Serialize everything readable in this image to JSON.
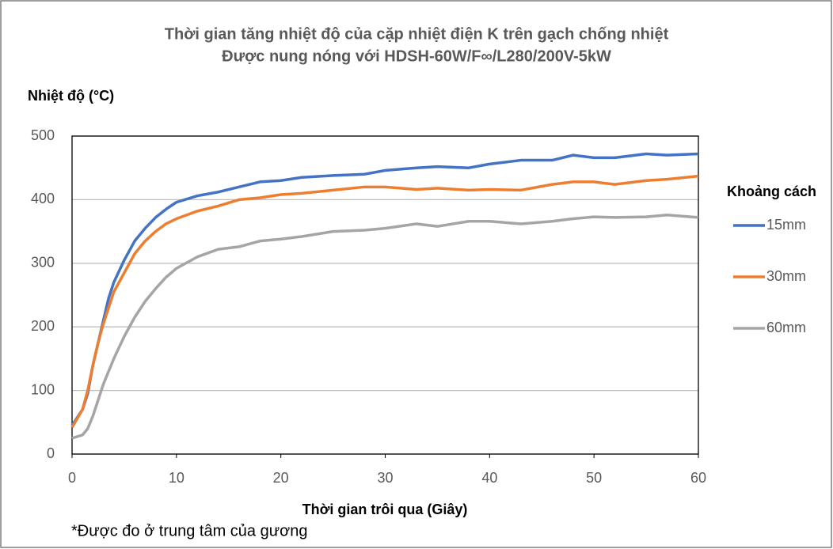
{
  "chart_data": {
    "type": "line",
    "title": "Thời gian tăng nhiệt độ của cặp nhiệt điện K trên gạch chống nhiệt",
    "subtitle": "Được nung nóng với HDSH-60W/F∞/L280/200V-5kW",
    "y_label": "Nhiệt độ (°C)",
    "x_label": "Thời gian trôi qua (Giây)",
    "legend_title": "Khoảng cách",
    "legend_position": "right",
    "annotation": "*Được đo ở trung tâm của gương",
    "grid": true,
    "x": [
      0,
      1,
      1.5,
      2,
      2.5,
      3,
      3.5,
      4,
      5,
      6,
      7,
      8,
      9,
      10,
      12,
      14,
      16,
      18,
      20,
      22,
      25,
      28,
      30,
      33,
      35,
      38,
      40,
      43,
      46,
      48,
      50,
      52,
      55,
      57,
      60
    ],
    "series": [
      {
        "name": "15mm",
        "color": "#4472c4",
        "values": [
          45,
          70,
          95,
          140,
          175,
          210,
          245,
          270,
          305,
          335,
          355,
          372,
          385,
          396,
          406,
          412,
          420,
          428,
          430,
          435,
          438,
          440,
          446,
          450,
          452,
          450,
          456,
          462,
          462,
          470,
          466,
          466,
          472,
          470,
          472
        ]
      },
      {
        "name": "30mm",
        "color": "#ed7d31",
        "values": [
          42,
          70,
          100,
          140,
          175,
          205,
          230,
          255,
          285,
          315,
          335,
          350,
          362,
          370,
          382,
          390,
          400,
          403,
          408,
          410,
          415,
          420,
          420,
          416,
          418,
          415,
          416,
          415,
          424,
          428,
          428,
          424,
          430,
          432,
          437
        ]
      },
      {
        "name": "60mm",
        "color": "#a5a5a5",
        "values": [
          25,
          30,
          40,
          60,
          85,
          110,
          130,
          150,
          185,
          215,
          240,
          260,
          278,
          292,
          310,
          322,
          326,
          335,
          338,
          342,
          350,
          352,
          355,
          362,
          358,
          366,
          366,
          362,
          366,
          370,
          373,
          372,
          373,
          376,
          372
        ]
      }
    ],
    "xlim": [
      0,
      60
    ],
    "xticks": [
      0,
      10,
      20,
      30,
      40,
      50,
      60
    ],
    "ylim": [
      0,
      500
    ],
    "yticks": [
      0,
      100,
      200,
      300,
      400,
      500
    ]
  }
}
